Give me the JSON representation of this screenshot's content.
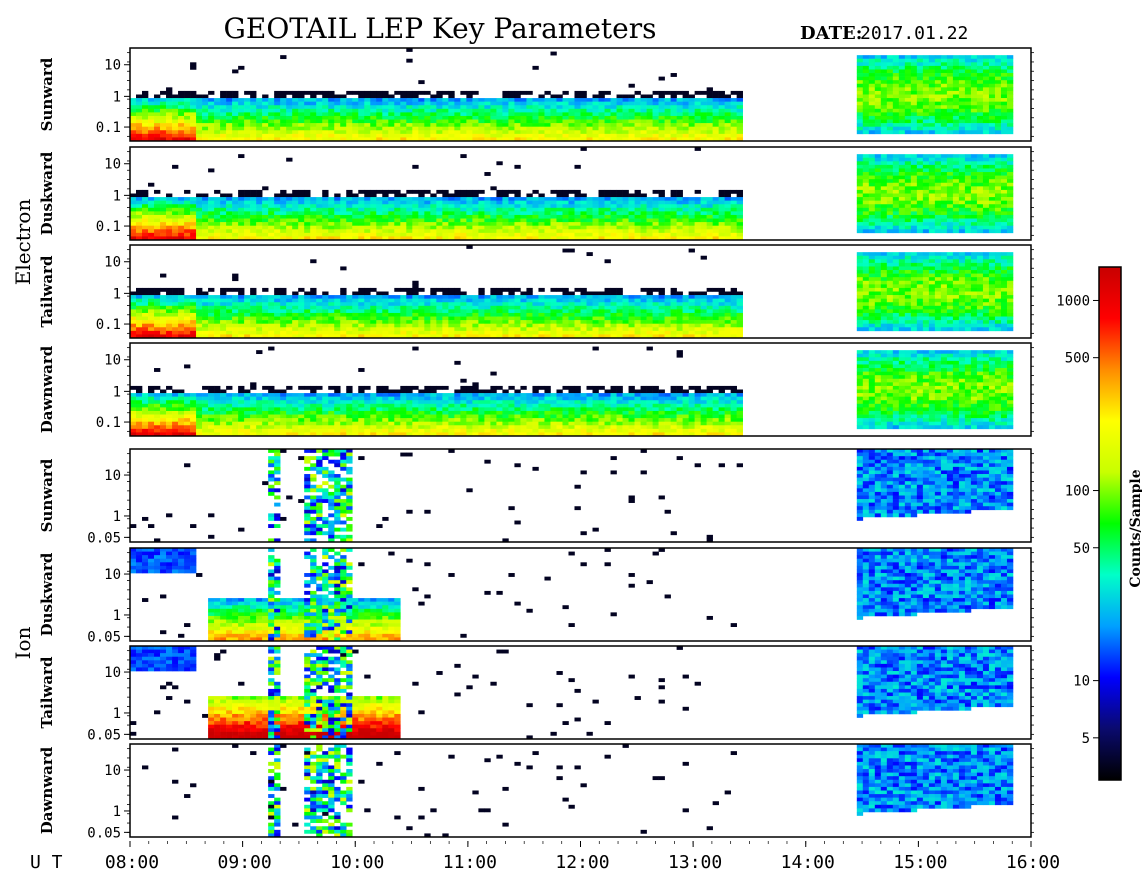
{
  "chart_data": {
    "type": "heatmap",
    "title": "GEOTAIL LEP Key Parameters",
    "date_label": "DATE:",
    "date_value": "2017.01.22",
    "x_axis_prefix": "U T",
    "x_ticks": [
      "08:00",
      "09:00",
      "10:00",
      "11:00",
      "12:00",
      "13:00",
      "14:00",
      "15:00",
      "16:00"
    ],
    "x_range_hours": [
      8,
      16
    ],
    "groups": [
      {
        "name": "Electron",
        "y_scale": "log",
        "y_ticks": [
          "10",
          "1",
          "0.1"
        ],
        "panels": [
          {
            "label": "Sunward"
          },
          {
            "label": "Duskward"
          },
          {
            "label": "Tailward"
          },
          {
            "label": "Dawnward"
          }
        ]
      },
      {
        "name": "Ion",
        "y_scale": "log",
        "y_ticks": [
          "10",
          "1",
          "0.05"
        ],
        "panels": [
          {
            "label": "Sunward"
          },
          {
            "label": "Duskward"
          },
          {
            "label": "Tailward"
          },
          {
            "label": "Dawnward"
          }
        ]
      }
    ],
    "data_gap_hours": [
      13.45,
      14.45
    ],
    "colorbar": {
      "label": "Counts/Sample",
      "scale": "log",
      "range": [
        3,
        1500
      ],
      "ticks": [
        "1000",
        "500",
        "100",
        "50",
        "10",
        "5"
      ],
      "tick_values": [
        1000,
        500,
        100,
        50,
        10,
        5
      ],
      "colormap": [
        "#000000",
        "#0a0a6e",
        "#0000ff",
        "#00a0ff",
        "#00ffc8",
        "#00ff00",
        "#c8ff00",
        "#ffff00",
        "#ff8c00",
        "#ff0000",
        "#c80000"
      ]
    }
  }
}
